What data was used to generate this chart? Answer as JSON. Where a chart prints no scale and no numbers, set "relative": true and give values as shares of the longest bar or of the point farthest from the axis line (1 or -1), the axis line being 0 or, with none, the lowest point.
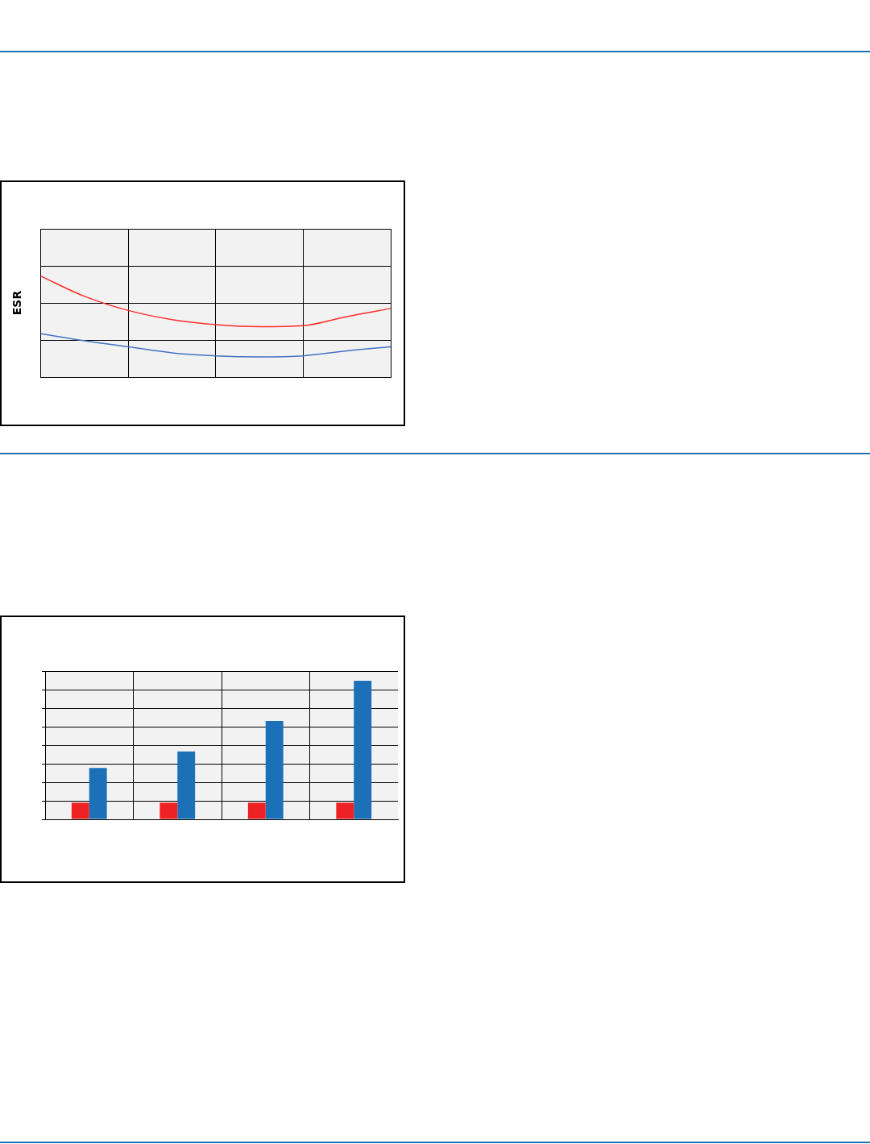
{
  "chart_data": [
    {
      "type": "line",
      "ylabel": "ESR",
      "relative": true,
      "grid": true,
      "categories": [
        null,
        null,
        null,
        null,
        null,
        null,
        null,
        null,
        null
      ],
      "series": [
        {
          "color": "#ff2a2a",
          "values": [
            1,
            0.8,
            0.66,
            0.57,
            0.52,
            0.5,
            0.51,
            0.6,
            0.68
          ]
        },
        {
          "color": "#4472c4",
          "values": [
            0.43,
            0.36,
            0.3,
            0.24,
            0.21,
            0.2,
            0.21,
            0.26,
            0.3
          ]
        }
      ]
    },
    {
      "type": "bar",
      "relative": true,
      "grid": true,
      "categories": [
        null,
        null,
        null,
        null
      ],
      "series": [
        {
          "color": "#ee2224",
          "values": [
            0.12,
            0.12,
            0.12,
            0.12
          ]
        },
        {
          "color": "#1b70b8",
          "values": [
            0.37,
            0.49,
            0.71,
            1
          ]
        }
      ]
    }
  ]
}
